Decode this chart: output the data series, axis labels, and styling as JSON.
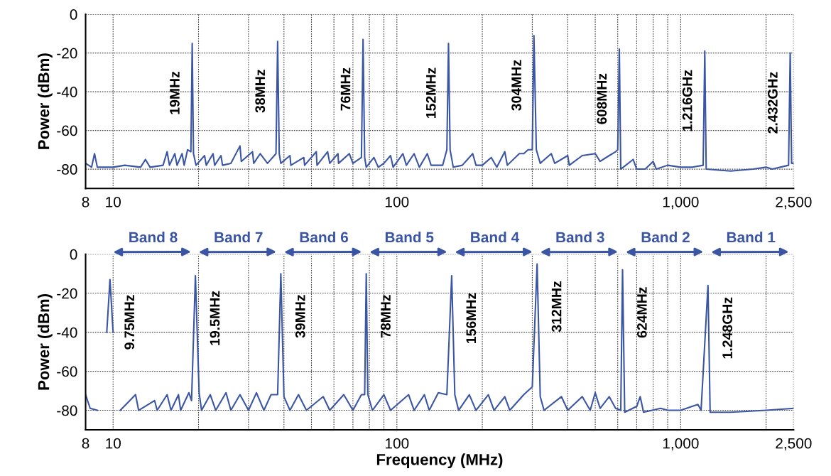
{
  "chart_data": [
    {
      "type": "line",
      "ylabel": "Power (dBm)",
      "xlim": [
        8,
        2500
      ],
      "ylim": [
        -90,
        0
      ],
      "log": "x",
      "grid": true,
      "xticks": [
        8,
        10,
        {
          "value": 20,
          "label": null
        },
        {
          "value": 30,
          "label": null
        },
        {
          "value": 40,
          "label": null
        },
        {
          "value": 50,
          "label": null
        },
        {
          "value": 60,
          "label": null
        },
        {
          "value": 70,
          "label": null
        },
        {
          "value": 80,
          "label": null
        },
        {
          "value": 90,
          "label": null
        },
        100,
        {
          "value": 200,
          "label": null
        },
        {
          "value": 300,
          "label": null
        },
        {
          "value": 400,
          "label": null
        },
        {
          "value": 500,
          "label": null
        },
        {
          "value": 600,
          "label": null
        },
        {
          "value": 700,
          "label": null
        },
        {
          "value": 800,
          "label": null
        },
        {
          "value": 900,
          "label": null
        },
        {
          "value": 1000,
          "label": "1,000"
        },
        {
          "value": 2000,
          "label": null
        },
        {
          "value": 2500,
          "label": "2,500"
        }
      ],
      "yticks": [
        0,
        -20,
        -40,
        -60,
        -80
      ],
      "annotations": [
        {
          "text": "19MHz",
          "x": 19,
          "y": -15
        },
        {
          "text": "38MHz",
          "x": 38,
          "y": -14
        },
        {
          "text": "76MHz",
          "x": 76,
          "y": -13
        },
        {
          "text": "152MHz",
          "x": 152,
          "y": -15
        },
        {
          "text": "304MHz",
          "x": 304,
          "y": -11
        },
        {
          "text": "608MHz",
          "x": 608,
          "y": -18
        },
        {
          "text": "1.216GHz",
          "x": 1216,
          "y": -19
        },
        {
          "text": "2.432GHz",
          "x": 2432,
          "y": -20
        }
      ],
      "series": [
        {
          "color": "#3a55a4",
          "x": [
            8,
            8.4,
            8.6,
            8.8,
            10,
            11,
            12.5,
            13,
            13.5,
            15,
            15.5,
            15.8,
            16.5,
            16.8,
            17.5,
            17.8,
            18.3,
            18.8,
            19,
            19.2,
            19.6,
            21,
            21.3,
            22.5,
            22.8,
            24,
            24.3,
            26,
            28,
            28.3,
            31,
            31.3,
            33,
            35,
            37.5,
            38,
            38.5,
            39,
            42,
            42.3,
            47,
            47.3,
            52,
            52.3,
            57,
            58,
            62,
            62.3,
            68,
            70,
            75,
            76,
            77,
            78,
            83,
            86,
            90,
            95,
            97,
            105,
            108,
            115,
            120,
            128,
            132,
            145,
            150,
            152,
            154,
            158,
            170,
            185,
            190,
            200,
            215,
            225,
            240,
            245,
            270,
            280,
            290,
            300,
            304,
            310,
            320,
            350,
            360,
            400,
            405,
            450,
            500,
            520,
            560,
            590,
            600,
            608,
            615,
            680,
            700,
            750,
            800,
            820,
            900,
            1000,
            1100,
            1200,
            1216,
            1230,
            1500,
            1800,
            2000,
            2100,
            2400,
            2432,
            2460,
            2500
          ],
          "values": [
            -77,
            -79,
            -72,
            -79,
            -79,
            -78,
            -79,
            -75,
            -79,
            -78,
            -71,
            -78,
            -72,
            -78,
            -72,
            -78,
            -70,
            -71,
            -15,
            -72,
            -78,
            -73,
            -78,
            -72,
            -78,
            -73,
            -78,
            -77,
            -68,
            -76,
            -71,
            -77,
            -72,
            -77,
            -72,
            -14,
            -72,
            -77,
            -73,
            -78,
            -74,
            -78,
            -71,
            -78,
            -71,
            -77,
            -72,
            -77,
            -72,
            -77,
            -74,
            -13,
            -74,
            -79,
            -74,
            -79,
            -77,
            -73,
            -79,
            -72,
            -78,
            -72,
            -79,
            -72,
            -78,
            -78,
            -70,
            -15,
            -70,
            -79,
            -78,
            -72,
            -78,
            -78,
            -74,
            -79,
            -71,
            -78,
            -72,
            -72,
            -70,
            -70,
            -11,
            -70,
            -77,
            -72,
            -77,
            -73,
            -78,
            -73,
            -72,
            -76,
            -73,
            -71,
            -70,
            -18,
            -80,
            -75,
            -80,
            -80,
            -76,
            -80,
            -78,
            -79,
            -79,
            -78,
            -19,
            -80,
            -81,
            -80,
            -79,
            -80,
            -78,
            -20,
            -77,
            -77
          ]
        }
      ]
    },
    {
      "type": "line",
      "xlabel": "Frequency (MHz)",
      "ylabel": "Power (dBm)",
      "xlim": [
        8,
        2500
      ],
      "ylim": [
        -90,
        0
      ],
      "log": "x",
      "grid": true,
      "xticks": [
        8,
        10,
        {
          "value": 20,
          "label": null
        },
        {
          "value": 30,
          "label": null
        },
        {
          "value": 40,
          "label": null
        },
        {
          "value": 50,
          "label": null
        },
        {
          "value": 60,
          "label": null
        },
        {
          "value": 70,
          "label": null
        },
        {
          "value": 80,
          "label": null
        },
        {
          "value": 90,
          "label": null
        },
        100,
        {
          "value": 200,
          "label": null
        },
        {
          "value": 300,
          "label": null
        },
        {
          "value": 400,
          "label": null
        },
        {
          "value": 500,
          "label": null
        },
        {
          "value": 600,
          "label": null
        },
        {
          "value": 700,
          "label": null
        },
        {
          "value": 800,
          "label": null
        },
        {
          "value": 900,
          "label": null
        },
        {
          "value": 1000,
          "label": "1,000"
        },
        {
          "value": 2000,
          "label": null
        },
        {
          "value": 2500,
          "label": "2,500"
        }
      ],
      "yticks": [
        0,
        -20,
        -40,
        -60,
        -80
      ],
      "annotations": [
        "Band 8",
        "Band 7",
        "Band 6",
        "Band 5",
        "Band 4",
        "Band 3",
        "Band 2",
        "Band 1",
        {
          "text": "9.75MHz",
          "x": 9.75,
          "y": -13
        },
        {
          "text": "19.5MHz",
          "x": 19.5,
          "y": -11
        },
        {
          "text": "39MHz",
          "x": 39,
          "y": -10
        },
        {
          "text": "78MHz",
          "x": 78,
          "y": -10
        },
        {
          "text": "156MHz",
          "x": 156,
          "y": -11
        },
        {
          "text": "312MHz",
          "x": 312,
          "y": -5
        },
        {
          "text": "624MHz",
          "x": 624,
          "y": -8
        },
        {
          "text": "1.248GHz",
          "x": 1248,
          "y": -16
        }
      ],
      "series": [
        {
          "color": "#3a55a4",
          "x": [
            8,
            8.3,
            8.8,
            9.0,
            9.5,
            9.75,
            10.0,
            10.4,
            10.6,
            12,
            12.3,
            14,
            14.3,
            15.5,
            16,
            17,
            17.3,
            18.5,
            18.9,
            19.5,
            20.1,
            20.5,
            22,
            23,
            25,
            26,
            28,
            30,
            32,
            34,
            36,
            38,
            39,
            40,
            42,
            45,
            48,
            55,
            58,
            65,
            70,
            75,
            77,
            78,
            79,
            82,
            90,
            95,
            110,
            115,
            125,
            130,
            140,
            150,
            156,
            160,
            165,
            180,
            190,
            210,
            220,
            240,
            250,
            280,
            300,
            312,
            320,
            330,
            380,
            400,
            450,
            480,
            500,
            520,
            560,
            590,
            615,
            624,
            635,
            700,
            720,
            740,
            850,
            900,
            1000,
            1150,
            1180,
            1248,
            1270,
            1500,
            2000,
            2500
          ],
          "values": [
            -72,
            -79,
            -80,
            null,
            -40,
            -13,
            -40,
            null,
            -80,
            -72,
            -80,
            -75,
            -80,
            -72,
            -80,
            -72,
            -80,
            -71,
            -75,
            -11,
            -71,
            -80,
            -72,
            -80,
            -71,
            -80,
            -72,
            -80,
            -71,
            -80,
            -72,
            -72,
            -10,
            -73,
            -80,
            -72,
            -80,
            -73,
            -80,
            -72,
            -80,
            -72,
            -72,
            -10,
            -72,
            -80,
            -72,
            -80,
            -72,
            -80,
            -72,
            -80,
            -71,
            -72,
            -11,
            -72,
            -80,
            -72,
            -80,
            -72,
            -80,
            -73,
            -80,
            -72,
            -68,
            -5,
            -73,
            -80,
            -73,
            -80,
            -73,
            -80,
            -71,
            -79,
            -73,
            -79,
            -80,
            -8,
            -81,
            -78,
            -73,
            -81,
            -79,
            -80,
            -80,
            -77,
            -80,
            -16,
            -81,
            -81,
            -80,
            -79
          ]
        }
      ]
    }
  ]
}
